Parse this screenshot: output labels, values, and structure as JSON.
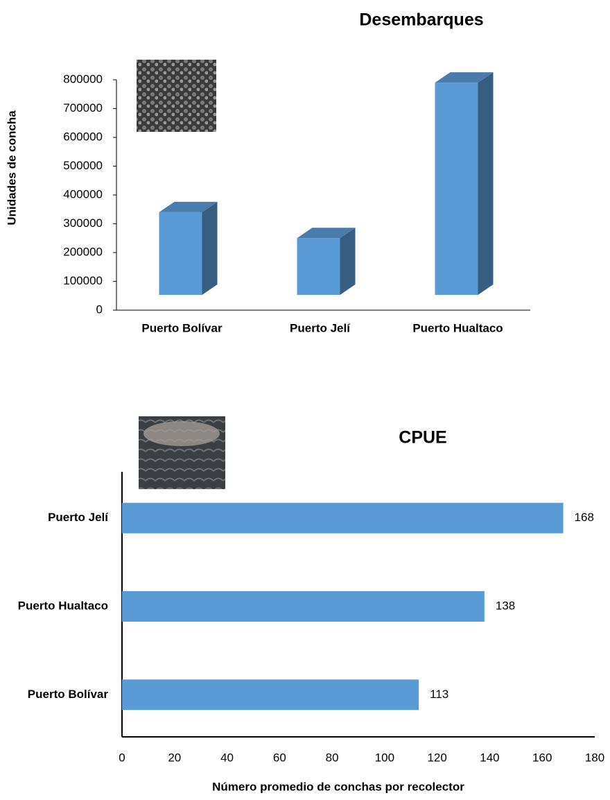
{
  "chart_data": [
    {
      "type": "bar3d",
      "title": "Desembarques",
      "y_label": "Unidades de concha",
      "categories": [
        "Puerto Bolívar",
        "Puerto Jelí",
        "Puerto Hualtaco"
      ],
      "values": [
        340000,
        250000,
        790000
      ],
      "color": "#5b9bd5",
      "ylim": [
        0,
        800000
      ],
      "yticks": [
        0,
        100000,
        200000,
        300000,
        400000,
        500000,
        600000,
        700000,
        800000
      ]
    },
    {
      "type": "barh",
      "title": "CPUE",
      "x_label": "Número promedio de conchas por recolector",
      "categories": [
        "Puerto Bolívar",
        "Puerto Hualtaco",
        "Puerto Jelí"
      ],
      "values": [
        113,
        138,
        168
      ],
      "color": "#5b9bd5",
      "data_labels": true,
      "xlim": [
        0,
        180
      ],
      "xticks": [
        0,
        20,
        40,
        60,
        80,
        100,
        120,
        140,
        160,
        180
      ]
    }
  ]
}
